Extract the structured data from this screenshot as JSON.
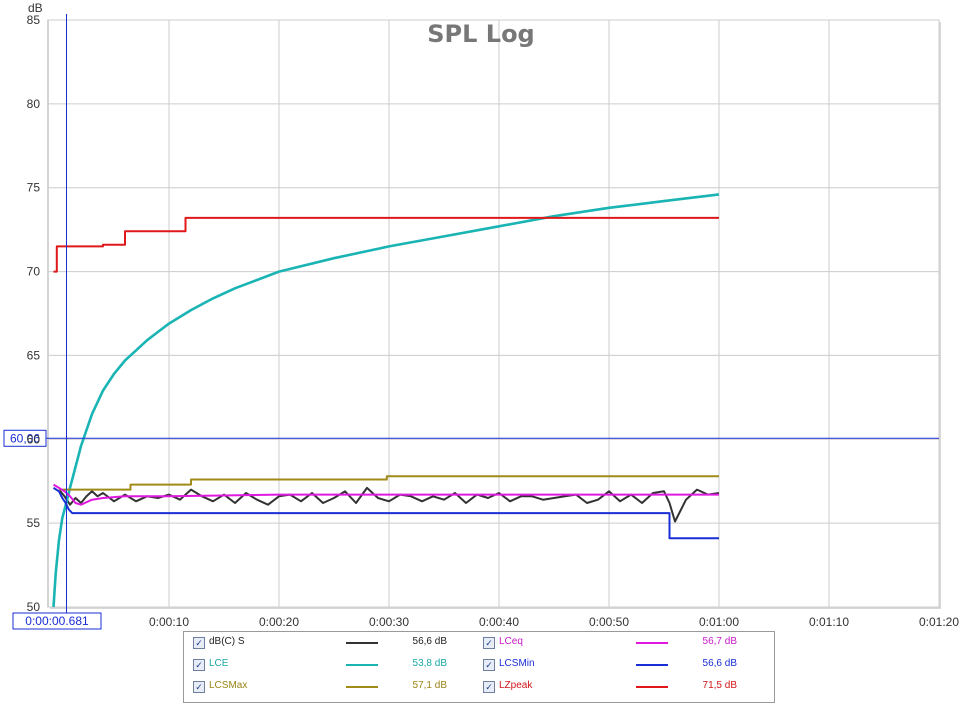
{
  "chart_data": {
    "type": "line",
    "title": "SPL Log",
    "ylabel": "dB",
    "xlabel": "",
    "ylim": [
      50,
      85
    ],
    "xlim": [
      -1,
      80
    ],
    "y_ticks": [
      "85",
      "80",
      "75",
      "70",
      "65",
      "60",
      "55",
      "50"
    ],
    "x_ticks": [
      "0:00:10",
      "0:00:20",
      "0:00:30",
      "0:00:40",
      "0:00:50",
      "0:01:00",
      "0:01:10",
      "0:01:20"
    ],
    "grid": true,
    "cursor": {
      "x_label": "0:00:00.681",
      "y_label": "60,06",
      "x": 0.681,
      "y": 60.06
    },
    "series": [
      {
        "name": "dB(C) S",
        "color": "#333333",
        "points": [
          [
            0,
            57
          ],
          [
            0.5,
            56.6
          ],
          [
            1,
            56.1
          ],
          [
            1.5,
            56.5
          ],
          [
            2,
            56.2
          ],
          [
            2.5,
            56.6
          ],
          [
            3,
            56.9
          ],
          [
            3.5,
            56.6
          ],
          [
            4,
            56.8
          ],
          [
            5,
            56.3
          ],
          [
            6,
            56.7
          ],
          [
            7,
            56.3
          ],
          [
            8,
            56.6
          ],
          [
            9,
            56.5
          ],
          [
            10,
            56.7
          ],
          [
            11,
            56.4
          ],
          [
            12,
            57
          ],
          [
            13,
            56.6
          ],
          [
            14,
            56.3
          ],
          [
            15,
            56.7
          ],
          [
            16,
            56.2
          ],
          [
            17,
            56.8
          ],
          [
            18,
            56.4
          ],
          [
            19,
            56.1
          ],
          [
            20,
            56.6
          ],
          [
            21,
            56.7
          ],
          [
            22,
            56.3
          ],
          [
            23,
            56.8
          ],
          [
            24,
            56.2
          ],
          [
            25,
            56.5
          ],
          [
            26,
            56.9
          ],
          [
            27,
            56.2
          ],
          [
            28,
            57.1
          ],
          [
            29,
            56.5
          ],
          [
            30,
            56.3
          ],
          [
            31,
            56.7
          ],
          [
            32,
            56.6
          ],
          [
            33,
            56.3
          ],
          [
            34,
            56.6
          ],
          [
            35,
            56.4
          ],
          [
            36,
            56.8
          ],
          [
            37,
            56.2
          ],
          [
            38,
            56.7
          ],
          [
            39,
            56.5
          ],
          [
            40,
            56.8
          ],
          [
            41,
            56.3
          ],
          [
            42,
            56.6
          ],
          [
            43,
            56.6
          ],
          [
            44,
            56.4
          ],
          [
            45,
            56.5
          ],
          [
            46,
            56.6
          ],
          [
            47,
            56.7
          ],
          [
            48,
            56.2
          ],
          [
            49,
            56.4
          ],
          [
            50,
            56.9
          ],
          [
            51,
            56.3
          ],
          [
            52,
            56.7
          ],
          [
            53,
            56.2
          ],
          [
            54,
            56.8
          ],
          [
            55,
            56.9
          ],
          [
            55.5,
            56.2
          ],
          [
            56,
            55.1
          ],
          [
            57,
            56.4
          ],
          [
            58,
            57
          ],
          [
            59,
            56.7
          ],
          [
            60,
            56.8
          ]
        ]
      },
      {
        "name": "LCE",
        "color": "#1ab4b4",
        "points": [
          [
            -0.5,
            50
          ],
          [
            -0.3,
            52
          ],
          [
            0,
            54
          ],
          [
            0.3,
            55.3
          ],
          [
            0.7,
            56.3
          ],
          [
            1,
            57.1
          ],
          [
            2,
            59.6
          ],
          [
            3,
            61.5
          ],
          [
            4,
            62.9
          ],
          [
            5,
            63.9
          ],
          [
            6,
            64.7
          ],
          [
            7,
            65.3
          ],
          [
            8,
            65.9
          ],
          [
            9,
            66.4
          ],
          [
            10,
            66.9
          ],
          [
            12,
            67.7
          ],
          [
            14,
            68.4
          ],
          [
            16,
            69
          ],
          [
            18,
            69.5
          ],
          [
            20,
            70
          ],
          [
            25,
            70.8
          ],
          [
            30,
            71.5
          ],
          [
            35,
            72.1
          ],
          [
            40,
            72.7
          ],
          [
            45,
            73.3
          ],
          [
            50,
            73.8
          ],
          [
            55,
            74.2
          ],
          [
            60,
            74.6
          ]
        ]
      },
      {
        "name": "LCSMax",
        "color": "#a08a18",
        "points": [
          [
            0,
            57
          ],
          [
            6.5,
            57
          ],
          [
            6.5,
            57.3
          ],
          [
            12,
            57.3
          ],
          [
            12,
            57.6
          ],
          [
            29.8,
            57.6
          ],
          [
            29.8,
            57.8
          ],
          [
            60,
            57.8
          ]
        ]
      },
      {
        "name": "LCeq",
        "color": "#e018e0",
        "points": [
          [
            -0.5,
            57.3
          ],
          [
            0,
            57.1
          ],
          [
            0.5,
            56.9
          ],
          [
            1,
            56.6
          ],
          [
            1.5,
            56.2
          ],
          [
            2,
            56.1
          ],
          [
            3,
            56.4
          ],
          [
            4,
            56.5
          ],
          [
            6,
            56.6
          ],
          [
            10,
            56.6
          ],
          [
            20,
            56.7
          ],
          [
            30,
            56.7
          ],
          [
            40,
            56.7
          ],
          [
            50,
            56.7
          ],
          [
            60,
            56.7
          ]
        ]
      },
      {
        "name": "LCSMin",
        "color": "#1a2ed6",
        "points": [
          [
            -0.5,
            57.1
          ],
          [
            0,
            56.9
          ],
          [
            0.3,
            56.5
          ],
          [
            0.6,
            56.2
          ],
          [
            0.9,
            55.8
          ],
          [
            1.2,
            55.6
          ],
          [
            55.5,
            55.6
          ],
          [
            55.5,
            54.1
          ],
          [
            60,
            54.1
          ]
        ]
      },
      {
        "name": "LZpeak",
        "color": "#e0181a",
        "points": [
          [
            -0.5,
            70
          ],
          [
            -0.2,
            70
          ],
          [
            -0.2,
            71.5
          ],
          [
            4,
            71.5
          ],
          [
            4,
            71.6
          ],
          [
            6,
            71.6
          ],
          [
            6,
            72.4
          ],
          [
            11.5,
            72.4
          ],
          [
            11.5,
            73.2
          ],
          [
            60,
            73.2
          ]
        ]
      }
    ]
  },
  "legend": {
    "items": [
      {
        "name": "dB(C) S",
        "value": "56,6 dB",
        "color": "#333333",
        "label_color": "#222222"
      },
      {
        "name": "LCeq",
        "value": "56,7 dB",
        "color": "#e018e0",
        "label_color": "#c818c8"
      },
      {
        "name": "LCE",
        "value": "53,8 dB",
        "color": "#1ab4b4",
        "label_color": "#19a7a7"
      },
      {
        "name": "LCSMin",
        "value": "56,6 dB",
        "color": "#1a2ed6",
        "label_color": "#1a2ed6"
      },
      {
        "name": "LCSMax",
        "value": "57,1 dB",
        "color": "#a08a18",
        "label_color": "#9a8416"
      },
      {
        "name": "LZpeak",
        "value": "71,5 dB",
        "color": "#e0181a",
        "label_color": "#d11518"
      }
    ],
    "checkbox_mark": "✓"
  }
}
